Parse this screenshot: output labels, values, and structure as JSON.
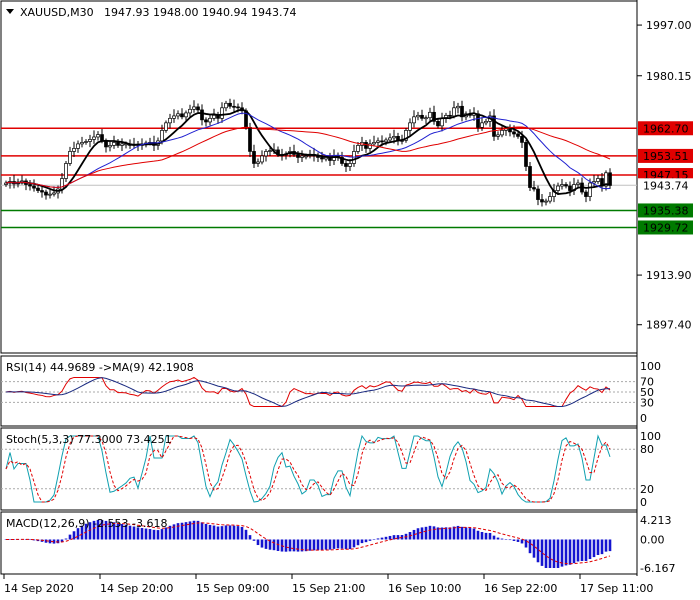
{
  "header": {
    "symbol": "XAUUSD,M30",
    "ohlc": "1947.93 1948.00 1940.94 1943.74"
  },
  "colors": {
    "bull_candle": "#ffffff",
    "bear_candle": "#000000",
    "ma_fast": "#000000",
    "ma_mid": "#2020d0",
    "ma_slow": "#e00000",
    "resistance": "#e00000",
    "support": "#007a00",
    "macd_hist": "#1414d0",
    "indicator_main": "#1a2a80",
    "indicator_signal": "#e00000",
    "stoch_main": "#10a0b0"
  },
  "price_axis": {
    "ticks": [
      "1997.00",
      "1980.15",
      "1913.90",
      "1897.40"
    ],
    "current_price": "1943.74",
    "levels": [
      {
        "label": "1962.70",
        "kind": "resistance"
      },
      {
        "label": "1953.51",
        "kind": "resistance"
      },
      {
        "label": "1947.15",
        "kind": "resistance"
      },
      {
        "label": "1935.38",
        "kind": "support"
      },
      {
        "label": "1929.72",
        "kind": "support"
      }
    ]
  },
  "time_axis": [
    "14 Sep 2020",
    "14 Sep 20:00",
    "15 Sep 09:00",
    "15 Sep 21:00",
    "16 Sep 10:00",
    "16 Sep 22:00",
    "17 Sep 11:00"
  ],
  "rsi": {
    "title": "RSI(14) 44.9689 ->MA(9) 42.1908",
    "ticks": [
      "100",
      "70",
      "50",
      "30",
      "0"
    ]
  },
  "stoch": {
    "title": "Stoch(5,3,3) 77.3000 73.4251",
    "ticks": [
      "100",
      "80",
      "20",
      "0"
    ]
  },
  "macd": {
    "title": "MACD(12,26,9) -2.553 -3.618",
    "ticks": [
      "4.213",
      "0.00",
      "-6.167"
    ]
  },
  "chart_data": {
    "type": "candlestick",
    "instrument": "XAUUSD",
    "timeframe": "M30",
    "ylim": [
      1888,
      2005
    ],
    "close_series": [
      1944.5,
      1945.0,
      1944.2,
      1944.8,
      1945.2,
      1944.0,
      1943.5,
      1942.8,
      1942.0,
      1941.5,
      1940.5,
      1940.8,
      1941.2,
      1942.5,
      1946.0,
      1951.0,
      1955.0,
      1956.0,
      1957.5,
      1958.0,
      1958.3,
      1959.0,
      1959.8,
      1960.6,
      1958.5,
      1956.5,
      1957.0,
      1958.0,
      1957.0,
      1957.5,
      1957.5,
      1957.0,
      1957.3,
      1957.0,
      1957.5,
      1957.8,
      1958.0,
      1957.0,
      1958.5,
      1962.0,
      1964.5,
      1966.0,
      1966.8,
      1967.5,
      1966.5,
      1967.8,
      1969.0,
      1969.8,
      1968.8,
      1965.5,
      1964.8,
      1966.0,
      1967.0,
      1966.0,
      1969.5,
      1971.0,
      1970.0,
      1969.8,
      1969.5,
      1968.5,
      1963.0,
      1955.0,
      1951.0,
      1951.5,
      1953.5,
      1955.0,
      1955.3,
      1955.5,
      1954.0,
      1953.8,
      1954.2,
      1955.0,
      1954.0,
      1953.0,
      1953.5,
      1953.5,
      1954.0,
      1953.5,
      1953.0,
      1952.5,
      1953.0,
      1952.0,
      1953.5,
      1953.0,
      1951.0,
      1950.0,
      1951.0,
      1955.0,
      1957.0,
      1958.0,
      1956.0,
      1957.5,
      1958.0,
      1958.5,
      1958.2,
      1958.8,
      1959.5,
      1960.0,
      1958.5,
      1958.7,
      1962.0,
      1964.5,
      1966.5,
      1967.0,
      1966.0,
      1966.2,
      1968.0,
      1965.0,
      1963.5,
      1966.0,
      1967.0,
      1966.8,
      1969.5,
      1970.0,
      1966.5,
      1967.5,
      1967.0,
      1967.5,
      1963.0,
      1964.5,
      1965.0,
      1966.8,
      1960.0,
      1960.5,
      1962.0,
      1962.5,
      1961.5,
      1960.8,
      1960.0,
      1958.0,
      1950.0,
      1943.0,
      1942.5,
      1939.0,
      1938.2,
      1938.5,
      1940.0,
      1942.0,
      1943.5,
      1944.0,
      1943.5,
      1942.0,
      1944.0,
      1944.5,
      1941.5,
      1940.0,
      1944.5,
      1945.0,
      1946.0,
      1943.5,
      1947.9,
      1943.7
    ]
  }
}
